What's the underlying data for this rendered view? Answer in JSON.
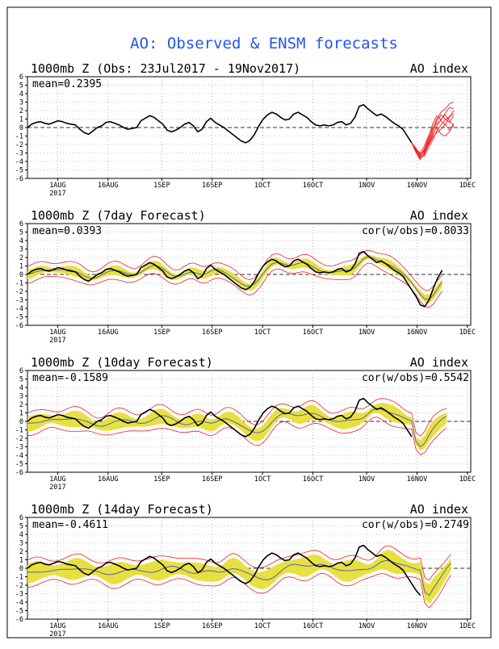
{
  "title": "AO: Observed & ENSM forecasts",
  "colors": {
    "title": "#2255ee",
    "observed": "#000000",
    "members": "#ee2222",
    "spread": "#e8e040",
    "ens_mean": "#5566aa",
    "grid": "#888888",
    "frame": "#000000"
  },
  "chart_data": [
    {
      "type": "line",
      "title": "1000mb Z (Obs: 23Jul2017 - 19Nov2017)",
      "index_label": "AO index",
      "mean_label": "mean=0.2395",
      "corr_label": "",
      "ylim": [
        -6,
        6
      ],
      "yticks": [
        "6",
        "5",
        "4",
        "3",
        "2",
        "1",
        "0",
        "-1",
        "-2",
        "-3",
        "-4",
        "-5",
        "-6"
      ],
      "xticks": [
        "1AUG",
        "16AUG",
        "1SEP",
        "16SEP",
        "1OCT",
        "16OCT",
        "1NOV",
        "16NOV",
        "1DEC"
      ],
      "xtick_sub": "2017",
      "observed": [
        0.0,
        0.4,
        0.6,
        0.7,
        0.5,
        0.4,
        0.6,
        0.8,
        0.7,
        0.5,
        0.4,
        0.3,
        -0.2,
        -0.6,
        -0.8,
        -0.4,
        0.0,
        0.2,
        0.6,
        0.7,
        0.5,
        0.3,
        0.0,
        -0.2,
        -0.1,
        0.0,
        0.8,
        1.1,
        1.4,
        1.2,
        0.8,
        0.4,
        -0.3,
        -0.5,
        -0.3,
        0.0,
        0.4,
        0.6,
        0.2,
        -0.5,
        -0.2,
        0.7,
        1.1,
        0.6,
        0.3,
        0.0,
        -0.4,
        -0.8,
        -1.2,
        -1.6,
        -1.8,
        -1.5,
        -0.8,
        0.2,
        1.0,
        1.5,
        1.8,
        1.6,
        1.2,
        0.9,
        1.0,
        1.6,
        1.8,
        1.5,
        1.2,
        0.7,
        0.3,
        0.2,
        0.3,
        0.2,
        0.3,
        0.6,
        0.7,
        0.3,
        0.5,
        1.2,
        2.5,
        2.7,
        2.2,
        1.8,
        1.4,
        1.6,
        1.3,
        0.9,
        0.5,
        0.2,
        -0.2,
        -1.0,
        -1.8
      ],
      "members": [
        [
          -1.8,
          -2.8,
          -3.5,
          -3.2,
          -2.0,
          -1.0,
          0.2,
          1.0,
          1.5,
          0.8,
          0.2
        ],
        [
          -1.8,
          -2.6,
          -3.3,
          -2.5,
          -1.5,
          -0.2,
          0.5,
          0.8,
          0.3,
          1.2,
          2.0
        ],
        [
          -1.8,
          -2.9,
          -3.8,
          -3.0,
          -1.8,
          -0.8,
          0.0,
          -0.8,
          -1.0,
          -0.5,
          0.5
        ],
        [
          -1.8,
          -2.5,
          -3.0,
          -2.2,
          -1.0,
          0.0,
          1.0,
          1.8,
          2.2,
          2.8,
          3.0
        ],
        [
          -1.8,
          -2.7,
          -3.2,
          -2.8,
          -1.6,
          -0.5,
          0.8,
          1.5,
          1.0,
          0.6,
          1.4
        ],
        [
          -1.8,
          -2.4,
          -3.4,
          -3.4,
          -2.4,
          -1.5,
          -0.4,
          0.3,
          0.9,
          1.3,
          1.6
        ],
        [
          -1.8,
          -2.8,
          -3.6,
          -2.6,
          -1.2,
          0.4,
          1.4,
          0.9,
          1.7,
          2.4,
          2.2
        ],
        [
          -1.8,
          -2.6,
          -3.1,
          -2.9,
          -2.1,
          -1.2,
          -0.6,
          -0.2,
          0.4,
          -0.3,
          0.2
        ]
      ],
      "spread_halfwidth": [],
      "mean_shift": [],
      "ens_lag": 0,
      "fc_extra": []
    },
    {
      "type": "line",
      "title": "1000mb Z (7day Forecast)",
      "index_label": "AO index",
      "mean_label": "mean=0.0393",
      "corr_label": "cor(w/obs)=0.8033",
      "ylim": [
        -6,
        6
      ],
      "yticks": [
        "6",
        "5",
        "4",
        "3",
        "2",
        "1",
        "0",
        "-1",
        "-2",
        "-3",
        "-4",
        "-5",
        "-6"
      ],
      "xticks": [
        "1AUG",
        "16AUG",
        "1SEP",
        "16SEP",
        "1OCT",
        "16OCT",
        "1NOV",
        "16NOV",
        "1DEC"
      ],
      "xtick_sub": "2017",
      "observed": [
        0.0,
        0.4,
        0.6,
        0.7,
        0.5,
        0.4,
        0.6,
        0.8,
        0.7,
        0.5,
        0.4,
        0.3,
        -0.2,
        -0.6,
        -0.8,
        -0.4,
        0.0,
        0.2,
        0.6,
        0.7,
        0.5,
        0.3,
        0.0,
        -0.2,
        -0.1,
        0.0,
        0.8,
        1.1,
        1.4,
        1.2,
        0.8,
        0.4,
        -0.3,
        -0.5,
        -0.3,
        0.0,
        0.4,
        0.6,
        0.2,
        -0.5,
        -0.2,
        0.7,
        1.1,
        0.6,
        0.3,
        0.0,
        -0.4,
        -0.8,
        -1.2,
        -1.6,
        -1.8,
        -1.5,
        -0.8,
        0.2,
        1.0,
        1.5,
        1.8,
        1.6,
        1.2,
        0.9,
        1.0,
        1.6,
        1.8,
        1.5,
        1.2,
        0.7,
        0.3,
        0.2,
        0.3,
        0.2,
        0.3,
        0.6,
        0.7,
        0.3,
        0.5,
        1.2,
        2.5,
        2.7,
        2.2,
        1.8,
        1.4,
        1.6,
        1.3,
        0.9,
        0.5,
        0.2,
        -0.2,
        -1.0,
        -1.8,
        -2.6,
        -3.6,
        -3.8,
        -3.0,
        -1.6,
        -0.4,
        0.5
      ],
      "members": [],
      "spread_halfwidth": 0.6,
      "mean_shift": 0.0,
      "ens_lag": 1,
      "fc_extra": []
    },
    {
      "type": "line",
      "title": "1000mb Z (10day Forecast)",
      "index_label": "AO index",
      "mean_label": "mean=-0.1589",
      "corr_label": "cor(w/obs)=0.5542",
      "ylim": [
        -6,
        6
      ],
      "yticks": [
        "6",
        "5",
        "4",
        "3",
        "2",
        "1",
        "0",
        "-1",
        "-2",
        "-3",
        "-4",
        "-5",
        "-6"
      ],
      "xticks": [
        "1AUG",
        "16AUG",
        "1SEP",
        "16SEP",
        "1OCT",
        "16OCT",
        "1NOV",
        "16NOV",
        "1DEC"
      ],
      "xtick_sub": "2017",
      "observed": [
        0.0,
        0.4,
        0.6,
        0.7,
        0.5,
        0.4,
        0.6,
        0.8,
        0.7,
        0.5,
        0.4,
        0.3,
        -0.2,
        -0.6,
        -0.8,
        -0.4,
        0.0,
        0.2,
        0.6,
        0.7,
        0.5,
        0.3,
        0.0,
        -0.2,
        -0.1,
        0.0,
        0.8,
        1.1,
        1.4,
        1.2,
        0.8,
        0.4,
        -0.3,
        -0.5,
        -0.3,
        0.0,
        0.4,
        0.6,
        0.2,
        -0.5,
        -0.2,
        0.7,
        1.1,
        0.6,
        0.3,
        0.0,
        -0.4,
        -0.8,
        -1.2,
        -1.6,
        -1.8,
        -1.5,
        -0.8,
        0.2,
        1.0,
        1.5,
        1.8,
        1.6,
        1.2,
        0.9,
        1.0,
        1.6,
        1.8,
        1.5,
        1.2,
        0.7,
        0.3,
        0.2,
        0.3,
        0.2,
        0.3,
        0.6,
        0.7,
        0.3,
        0.5,
        1.2,
        2.5,
        2.7,
        2.2,
        1.8,
        1.4,
        1.6,
        1.3,
        0.9,
        0.5,
        0.2,
        -0.2,
        -1.0,
        -1.8
      ],
      "members": [],
      "spread_halfwidth": 1.0,
      "mean_shift": -0.2,
      "ens_lag": 3,
      "fc_extra": [
        -2.4,
        -3.0,
        -2.6,
        -1.6,
        -0.8,
        -0.2,
        0.3,
        0.6
      ]
    },
    {
      "type": "line",
      "title": "1000mb Z (14day Forecast)",
      "index_label": "AO index",
      "mean_label": "mean=-0.4611",
      "corr_label": "cor(w/obs)=0.2749",
      "ylim": [
        -6,
        6
      ],
      "yticks": [
        "6",
        "5",
        "4",
        "3",
        "2",
        "1",
        "0",
        "-1",
        "-2",
        "-3",
        "-4",
        "-5",
        "-6"
      ],
      "xticks": [
        "1AUG",
        "16AUG",
        "1SEP",
        "16SEP",
        "1OCT",
        "16OCT",
        "1NOV",
        "16NOV",
        "1DEC"
      ],
      "xtick_sub": "2017",
      "observed": [
        0.0,
        0.4,
        0.6,
        0.7,
        0.5,
        0.4,
        0.6,
        0.8,
        0.7,
        0.5,
        0.4,
        0.3,
        -0.2,
        -0.6,
        -0.8,
        -0.4,
        0.0,
        0.2,
        0.6,
        0.7,
        0.5,
        0.3,
        0.0,
        -0.2,
        -0.1,
        0.0,
        0.8,
        1.1,
        1.4,
        1.2,
        0.8,
        0.4,
        -0.3,
        -0.5,
        -0.3,
        0.0,
        0.4,
        0.6,
        0.2,
        -0.5,
        -0.2,
        0.7,
        1.1,
        0.6,
        0.3,
        0.0,
        -0.4,
        -0.8,
        -1.2,
        -1.6,
        -1.8,
        -1.5,
        -0.8,
        0.2,
        1.0,
        1.5,
        1.8,
        1.6,
        1.2,
        0.9,
        1.0,
        1.6,
        1.8,
        1.5,
        1.2,
        0.7,
        0.3,
        0.2,
        0.3,
        0.2,
        0.3,
        0.6,
        0.7,
        0.3,
        0.5,
        1.2,
        2.5,
        2.7,
        2.2,
        1.8,
        1.4,
        1.6,
        1.3,
        0.9,
        0.5,
        0.2,
        -0.2,
        -1.0,
        -1.8,
        -2.6,
        -3.2
      ],
      "members": [],
      "spread_halfwidth": 1.3,
      "mean_shift": -0.45,
      "ens_lag": 5,
      "fc_extra": [
        -2.8,
        -3.2,
        -2.4,
        -1.6,
        -0.8,
        0.0,
        0.6
      ]
    }
  ]
}
